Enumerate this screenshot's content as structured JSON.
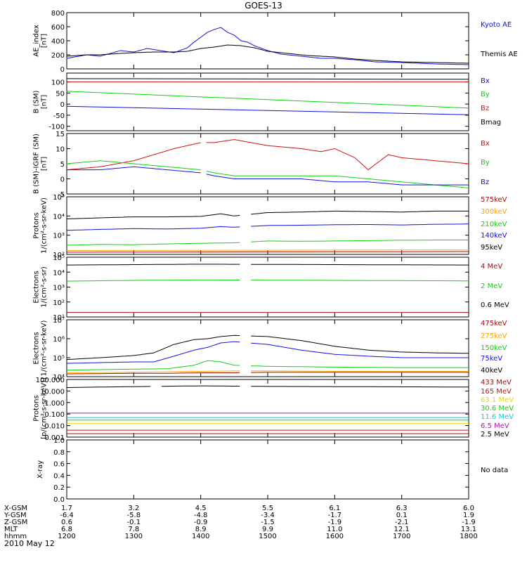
{
  "title": "GOES-13",
  "date_label": "2010 May 12",
  "colors": {
    "black": "#000000",
    "blue": "#1010e0",
    "red": "#d01010",
    "green": "#10d010",
    "orange": "#ffa500",
    "yellow": "#e8d800",
    "cyan": "#10c8e8",
    "purple": "#a020a0",
    "darkred": "#a01010",
    "navy": "#101090"
  },
  "ephemeris": {
    "rows": [
      {
        "label": "X-GSM",
        "values": [
          "1.7",
          "3.2",
          "4.5",
          "5.5",
          "6.1",
          "6.3",
          "6.0"
        ]
      },
      {
        "label": "Y-GSM",
        "values": [
          "-6.4",
          "-5.8",
          "-4.8",
          "-3.4",
          "-1.7",
          "0.1",
          "1.9"
        ]
      },
      {
        "label": "Z-GSM",
        "values": [
          "0.6",
          "-0.1",
          "-0.9",
          "-1.5",
          "-1.9",
          "-2.1",
          "-1.9"
        ]
      },
      {
        "label": "MLT",
        "values": [
          "6.8",
          "7.8",
          "8.9",
          "9.9",
          "11.0",
          "12.1",
          "13.1"
        ]
      },
      {
        "label": "hhmm",
        "values": [
          "1200",
          "1300",
          "1400",
          "1500",
          "1600",
          "1700",
          "1800"
        ]
      }
    ]
  },
  "chart_data": [
    {
      "type": "line",
      "id": "ae",
      "ylabel_lines": [
        "AE_index",
        "[nT]"
      ],
      "ylim": [
        0,
        800
      ],
      "yscale": "linear",
      "yticks": [
        0,
        200,
        400,
        600,
        800
      ],
      "ytick_labels": [
        "0",
        "200",
        "400",
        "600",
        "800"
      ],
      "xlim": [
        12.0,
        18.0
      ],
      "series": [
        {
          "name": "Kyoto AE",
          "color": "blue",
          "x": [
            12.0,
            12.3,
            12.5,
            12.8,
            13.0,
            13.2,
            13.4,
            13.6,
            13.8,
            13.9,
            14.0,
            14.1,
            14.2,
            14.3,
            14.4,
            14.5,
            14.6,
            14.7,
            14.8,
            15.0,
            15.2,
            15.5,
            15.8,
            16.0,
            16.3,
            16.6,
            17.0,
            17.5,
            18.0
          ],
          "y": [
            150,
            200,
            180,
            260,
            240,
            290,
            260,
            230,
            300,
            380,
            450,
            520,
            560,
            590,
            520,
            480,
            400,
            380,
            330,
            260,
            210,
            180,
            150,
            150,
            130,
            100,
            90,
            70,
            60
          ]
        },
        {
          "name": "Themis AE",
          "color": "black",
          "x": [
            12.0,
            12.3,
            12.5,
            12.8,
            13.0,
            13.3,
            13.6,
            13.8,
            14.0,
            14.2,
            14.4,
            14.6,
            14.8,
            15.0,
            15.3,
            15.6,
            16.0,
            16.3,
            16.6,
            17.0,
            17.5,
            18.0
          ],
          "y": [
            180,
            200,
            200,
            220,
            230,
            240,
            240,
            250,
            290,
            310,
            340,
            330,
            300,
            250,
            220,
            190,
            170,
            140,
            120,
            100,
            90,
            80
          ]
        }
      ]
    },
    {
      "type": "line",
      "id": "bsm",
      "ylabel_lines": [
        "B (SM)",
        "[nT]"
      ],
      "ylim": [
        -120,
        140
      ],
      "yscale": "linear",
      "yticks": [
        -100,
        -50,
        0,
        50,
        100
      ],
      "ytick_labels": [
        "-100",
        "-50",
        "0",
        "50",
        "100"
      ],
      "xlim": [
        12.0,
        18.0
      ],
      "gaps": [
        [
          14.0,
          14.07
        ]
      ],
      "series": [
        {
          "name": "Bx",
          "color": "blue",
          "x": [
            12.0,
            18.0
          ],
          "y": [
            -10,
            -48
          ]
        },
        {
          "name": "By",
          "color": "green",
          "x": [
            12.0,
            18.0
          ],
          "y": [
            58,
            -18
          ]
        },
        {
          "name": "Bz",
          "color": "red",
          "x": [
            12.0,
            18.0
          ],
          "y": [
            100,
            100
          ]
        },
        {
          "name": "Bmag",
          "color": "black",
          "x": [
            12.0,
            18.0
          ],
          "y": [
            115,
            112
          ]
        }
      ]
    },
    {
      "type": "line",
      "id": "bdiff",
      "ylabel_lines": [
        "B (SM)-IGRF (SM)",
        "[nT]"
      ],
      "ylim": [
        -5,
        15
      ],
      "yscale": "linear",
      "yticks": [
        -5,
        0,
        5,
        10,
        15
      ],
      "ytick_labels": [
        "-5",
        "0",
        "5",
        "10",
        "15"
      ],
      "xlim": [
        12.0,
        18.0
      ],
      "gaps": [
        [
          14.0,
          14.07
        ]
      ],
      "series": [
        {
          "name": "Bx",
          "color": "red",
          "x": [
            12.0,
            12.5,
            13.0,
            13.3,
            13.6,
            13.8,
            14.0,
            14.2,
            14.5,
            15.0,
            15.5,
            15.8,
            16.0,
            16.3,
            16.5,
            16.8,
            17.0,
            17.5,
            18.0
          ],
          "y": [
            3,
            4,
            6,
            8,
            10,
            11,
            12,
            12,
            13,
            11,
            10,
            9,
            10,
            7,
            3,
            8,
            7,
            6,
            5
          ]
        },
        {
          "name": "By",
          "color": "green",
          "x": [
            12.0,
            12.5,
            13.0,
            13.5,
            14.0,
            14.2,
            14.5,
            15.0,
            15.5,
            16.0,
            16.5,
            17.0,
            17.5,
            18.0
          ],
          "y": [
            5,
            6,
            5,
            4,
            3,
            2,
            1,
            1,
            1,
            1,
            0,
            -1,
            -2,
            -3
          ]
        },
        {
          "name": "Bz",
          "color": "blue",
          "x": [
            12.0,
            12.5,
            13.0,
            13.5,
            14.0,
            14.2,
            14.5,
            15.0,
            15.5,
            16.0,
            16.5,
            17.0,
            17.5,
            18.0
          ],
          "y": [
            3,
            3,
            4,
            3,
            2,
            1,
            0,
            0,
            0,
            -1,
            -1,
            -2,
            -2,
            -2
          ]
        }
      ]
    },
    {
      "type": "line",
      "id": "protons1",
      "ylabel_lines": [
        "Protons",
        "1/(cm²-s-sr-keV)"
      ],
      "ylim": [
        100,
        100000
      ],
      "yscale": "log",
      "yticks": [
        100,
        1000,
        10000,
        100000
      ],
      "ytick_labels": [
        "10²",
        "10³",
        "10⁴",
        "10⁵"
      ],
      "xlim": [
        12.0,
        18.0
      ],
      "gaps": [
        [
          14.6,
          14.75
        ]
      ],
      "series": [
        {
          "name": "575keV",
          "color": "darkred",
          "x": [
            12.0,
            18.0
          ],
          "y": [
            130,
            140
          ]
        },
        {
          "name": "300keV",
          "color": "orange",
          "x": [
            12.0,
            18.0
          ],
          "y": [
            160,
            170
          ]
        },
        {
          "name": "210keV",
          "color": "green",
          "x": [
            12.0,
            12.5,
            13.0,
            13.5,
            14.0,
            14.5,
            15.0,
            15.5,
            16.0,
            16.5,
            17.0,
            17.5,
            18.0
          ],
          "y": [
            300,
            330,
            320,
            350,
            380,
            400,
            500,
            480,
            500,
            520,
            550,
            560,
            560
          ]
        },
        {
          "name": "140keV",
          "color": "blue",
          "x": [
            12.0,
            12.5,
            13.0,
            13.5,
            14.0,
            14.3,
            14.5,
            15.0,
            15.5,
            16.0,
            16.5,
            17.0,
            17.5,
            18.0
          ],
          "y": [
            1800,
            2000,
            2200,
            2100,
            2300,
            2800,
            2600,
            3200,
            3300,
            3500,
            3600,
            3400,
            3700,
            3800
          ]
        },
        {
          "name": "95keV",
          "color": "black",
          "x": [
            12.0,
            12.5,
            13.0,
            13.5,
            14.0,
            14.3,
            14.5,
            15.0,
            15.5,
            16.0,
            16.5,
            17.0,
            17.5,
            18.0
          ],
          "y": [
            7000,
            8000,
            9000,
            9000,
            9500,
            13000,
            10000,
            15000,
            16000,
            18000,
            17000,
            16000,
            18000,
            18000
          ]
        }
      ]
    },
    {
      "type": "line",
      "id": "electrons1",
      "ylabel_lines": [
        "Electrons",
        "1/(cm²-s-sr)"
      ],
      "ylim": [
        10,
        100000
      ],
      "yscale": "log",
      "yticks": [
        10,
        100,
        1000,
        10000,
        100000
      ],
      "ytick_labels": [
        "10¹",
        "10²",
        "10³",
        "10⁴",
        "10⁵"
      ],
      "xlim": [
        12.0,
        18.0
      ],
      "gaps": [
        [
          14.6,
          14.75
        ]
      ],
      "series": [
        {
          "name": "4 MeV",
          "color": "darkred",
          "x": [
            12.0,
            18.0
          ],
          "y": [
            20,
            20
          ]
        },
        {
          "name": "2 MeV",
          "color": "green",
          "x": [
            12.0,
            13.0,
            14.0,
            15.0,
            16.0,
            17.0,
            18.0
          ],
          "y": [
            2500,
            2800,
            3000,
            2900,
            2800,
            2700,
            2600
          ]
        },
        {
          "name": "0.6 MeV",
          "color": "black",
          "x": [
            12.0,
            13.0,
            14.0,
            15.0,
            16.0,
            17.0,
            18.0
          ],
          "y": [
            30000,
            32000,
            34000,
            33000,
            32000,
            31000,
            30000
          ]
        }
      ]
    },
    {
      "type": "line",
      "id": "electrons2",
      "ylabel_lines": [
        "Electrons",
        "1/(cm²-s-sr-keV)"
      ],
      "ylim": [
        10000,
        10000000
      ],
      "yscale": "log",
      "yticks": [
        10000,
        100000,
        1000000,
        10000000
      ],
      "ytick_labels": [
        "10⁴",
        "10⁵",
        "10⁶",
        "10⁷"
      ],
      "xlim": [
        12.0,
        18.0
      ],
      "gaps": [
        [
          14.6,
          14.75
        ]
      ],
      "series": [
        {
          "name": "475keV",
          "color": "darkred",
          "x": [
            12.0,
            13.0,
            13.5,
            14.0,
            14.5,
            15.0,
            16.0,
            17.0,
            18.0
          ],
          "y": [
            14000,
            15000,
            15000,
            16000,
            16000,
            17000,
            17000,
            17000,
            17000
          ]
        },
        {
          "name": "275keV",
          "color": "orange",
          "x": [
            12.0,
            13.0,
            13.5,
            14.0,
            14.5,
            15.0,
            16.0,
            17.0,
            18.0
          ],
          "y": [
            16000,
            17000,
            18000,
            19000,
            20000,
            20000,
            19000,
            19000,
            19000
          ]
        },
        {
          "name": "150keV",
          "color": "green",
          "x": [
            12.0,
            13.0,
            13.5,
            13.9,
            14.1,
            14.3,
            14.5,
            15.0,
            16.0,
            17.0,
            18.0
          ],
          "y": [
            22000,
            25000,
            26000,
            40000,
            70000,
            60000,
            40000,
            35000,
            32000,
            30000,
            30000
          ]
        },
        {
          "name": "75keV",
          "color": "blue",
          "x": [
            12.0,
            12.5,
            13.0,
            13.3,
            13.6,
            13.9,
            14.1,
            14.3,
            14.5,
            15.0,
            15.5,
            16.0,
            16.5,
            17.0,
            17.5,
            18.0
          ],
          "y": [
            50000,
            55000,
            60000,
            60000,
            120000,
            250000,
            350000,
            600000,
            700000,
            500000,
            250000,
            150000,
            120000,
            100000,
            100000,
            100000
          ]
        },
        {
          "name": "40keV",
          "color": "black",
          "x": [
            12.0,
            12.5,
            13.0,
            13.3,
            13.6,
            13.9,
            14.1,
            14.3,
            14.5,
            15.0,
            15.5,
            16.0,
            16.5,
            17.0,
            17.5,
            18.0
          ],
          "y": [
            80000,
            100000,
            130000,
            180000,
            500000,
            900000,
            1000000,
            1300000,
            1500000,
            1300000,
            800000,
            400000,
            250000,
            200000,
            180000,
            170000
          ]
        }
      ]
    },
    {
      "type": "line",
      "id": "protons2",
      "ylabel_lines": [
        "Protons",
        "[p/(cm²-s-sr-keV)]"
      ],
      "ylim": [
        0.001,
        100
      ],
      "yscale": "log",
      "yticks": [
        0.001,
        0.01,
        0.1,
        1,
        10,
        100
      ],
      "ytick_labels": [
        "0.001",
        "0.010",
        "0.100",
        "1.000",
        "10.000",
        "100.000"
      ],
      "xlim": [
        12.0,
        18.0
      ],
      "gaps": [
        [
          13.3,
          13.4
        ],
        [
          14.6,
          14.75
        ]
      ],
      "series": [
        {
          "name": "433 MeV",
          "color": "darkred",
          "x": [
            12.0,
            18.0
          ],
          "y": [
            0.002,
            0.002
          ]
        },
        {
          "name": "165 MeV",
          "color": "red",
          "x": [
            12.0,
            18.0
          ],
          "y": [
            0.004,
            0.004
          ]
        },
        {
          "name": "63.1 MeV",
          "color": "yellow",
          "x": [
            12.0,
            18.0
          ],
          "y": [
            0.015,
            0.015
          ]
        },
        {
          "name": "30.6 MeV",
          "color": "green",
          "x": [
            12.0,
            18.0
          ],
          "y": [
            0.03,
            0.03
          ]
        },
        {
          "name": "11.6 MeV",
          "color": "cyan",
          "x": [
            12.0,
            18.0
          ],
          "y": [
            0.05,
            0.05
          ]
        },
        {
          "name": "6.5 MeV",
          "color": "purple",
          "x": [
            12.0,
            18.0
          ],
          "y": [
            0.12,
            0.12
          ]
        },
        {
          "name": "2.5 MeV",
          "color": "black",
          "x": [
            12.0,
            13.0,
            14.0,
            15.0,
            16.0,
            17.0,
            18.0
          ],
          "y": [
            20,
            24,
            28,
            25,
            24,
            23,
            22
          ]
        }
      ]
    },
    {
      "type": "line",
      "id": "xray",
      "ylabel_lines": [
        "X-ray"
      ],
      "ylim": [
        0,
        1
      ],
      "yscale": "linear",
      "yticks": [
        0,
        0.2,
        0.4,
        0.6,
        0.8,
        1.0
      ],
      "ytick_labels": [
        "0.0",
        "0.2",
        "0.4",
        "0.6",
        "0.8",
        "1.0"
      ],
      "xlim": [
        12.0,
        18.0
      ],
      "no_data_label": "No data",
      "series": []
    }
  ]
}
